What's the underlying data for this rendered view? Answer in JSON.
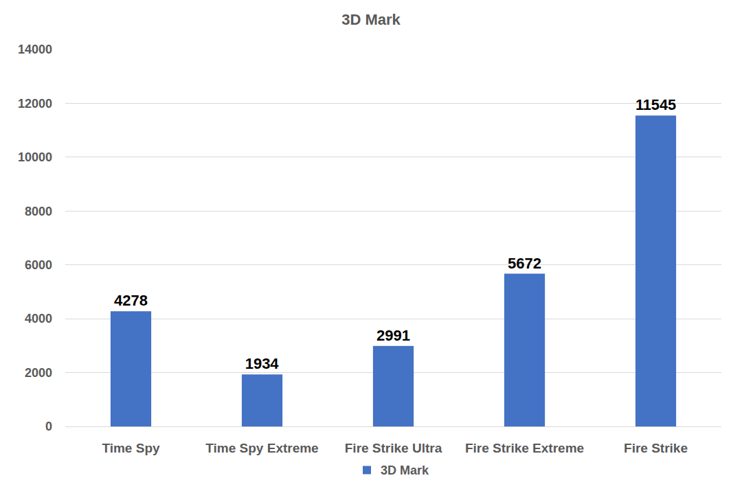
{
  "chart_data": {
    "type": "bar",
    "title": "3D Mark",
    "categories": [
      "Time Spy",
      "Time Spy Extreme",
      "Fire Strike Ultra",
      "Fire Strike Extreme",
      "Fire Strike"
    ],
    "series": [
      {
        "name": "3D Mark",
        "color": "#4472c4",
        "values": [
          4278,
          1934,
          2991,
          5672,
          11545
        ]
      }
    ],
    "ylim": [
      0,
      14000
    ],
    "yticks": [
      0,
      2000,
      4000,
      6000,
      8000,
      10000,
      12000,
      14000
    ],
    "grid": true,
    "data_labels": true,
    "legend": "bottom"
  }
}
